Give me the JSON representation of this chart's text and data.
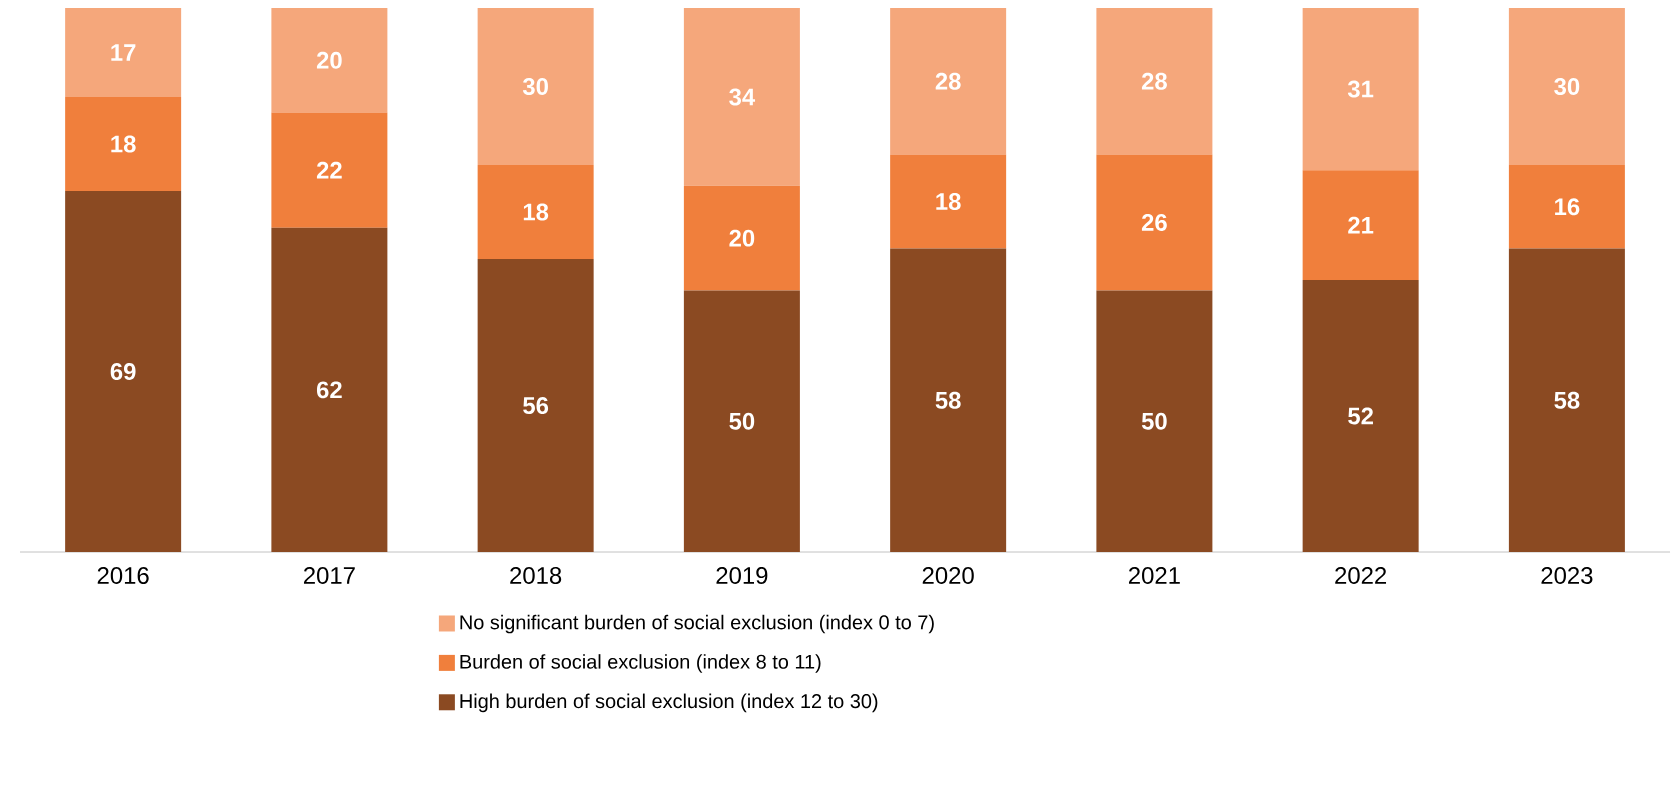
{
  "chart_data": {
    "type": "bar",
    "stacked": true,
    "data_labels": true,
    "legend": "bottom",
    "categories": [
      "2016",
      "2017",
      "2018",
      "2019",
      "2020",
      "2021",
      "2022",
      "2023"
    ],
    "series": [
      {
        "name": "High burden of social exclusion (index 12 to 30)",
        "color": "#8b4a22",
        "values": [
          69,
          62,
          56,
          50,
          58,
          50,
          52,
          58
        ]
      },
      {
        "name": "Burden of social exclusion (index 8 to 11)",
        "color": "#f07f3c",
        "values": [
          18,
          22,
          18,
          20,
          18,
          26,
          21,
          16
        ]
      },
      {
        "name": "No significant burden of social exclusion (index 0 to 7)",
        "color": "#f5a77b",
        "values": [
          17,
          20,
          30,
          34,
          28,
          28,
          31,
          30
        ]
      }
    ]
  }
}
